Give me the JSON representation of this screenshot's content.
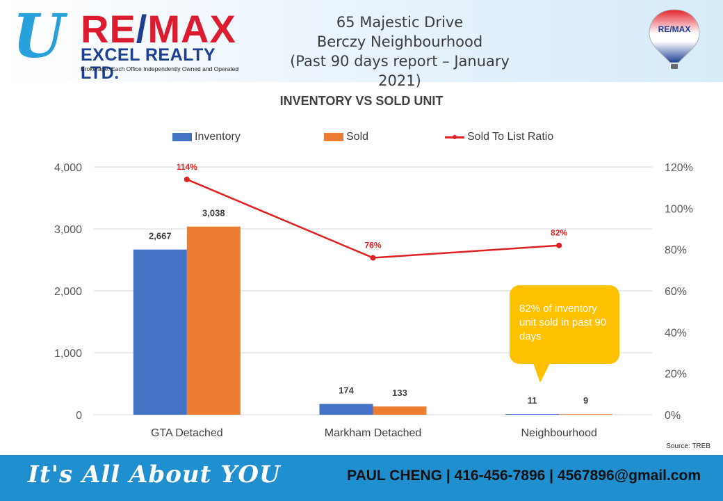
{
  "header": {
    "logo": {
      "u": "U",
      "remax": "RE/MAX",
      "excel": "EXCEL REALTY LTD.",
      "tagline": "Brokerage. Each Office Independently Owned and Operated"
    },
    "title_lines": [
      "65 Majestic Drive",
      "Berczy Neighbourhood",
      "(Past 90 days report – January 2021)"
    ],
    "balloon": {
      "label": "RE/MAX",
      "icon": "hot-air-balloon-icon"
    }
  },
  "chart_data": {
    "type": "bar",
    "title": "INVENTORY VS SOLD UNIT",
    "categories": [
      "GTA Detached",
      "Markham Detached",
      "Neighbourhood"
    ],
    "series": [
      {
        "name": "Inventory",
        "type": "bar",
        "color": "#4472c4",
        "values": [
          2667,
          174,
          11
        ],
        "labels": [
          "2,667",
          "174",
          "11"
        ]
      },
      {
        "name": "Sold",
        "type": "bar",
        "color": "#ed7d31",
        "values": [
          3038,
          133,
          9
        ],
        "labels": [
          "3,038",
          "133",
          "9"
        ]
      },
      {
        "name": "Sold To List Ratio",
        "type": "line",
        "axis": "right",
        "color": "#e02020",
        "values": [
          114,
          76,
          82
        ],
        "labels": [
          "114%",
          "76%",
          "82%"
        ]
      }
    ],
    "ylim": [
      0,
      4000
    ],
    "yticks": [
      0,
      1000,
      2000,
      3000,
      4000
    ],
    "ytick_labels": [
      "0",
      "1,000",
      "2,000",
      "3,000",
      "4,000"
    ],
    "y2lim": [
      0,
      120
    ],
    "y2ticks": [
      0,
      20,
      40,
      60,
      80,
      100,
      120
    ],
    "y2tick_labels": [
      "0%",
      "20%",
      "40%",
      "60%",
      "80%",
      "100%",
      "120%"
    ],
    "grid": true,
    "legend_position": "top",
    "annotation": "82% of inventory unit sold in past 90 days"
  },
  "source": "Source: TREB",
  "footer": {
    "slogan": "It's All About YOU",
    "contact": "PAUL CHENG | 416-456-7896 | 4567896@gmail.com"
  }
}
